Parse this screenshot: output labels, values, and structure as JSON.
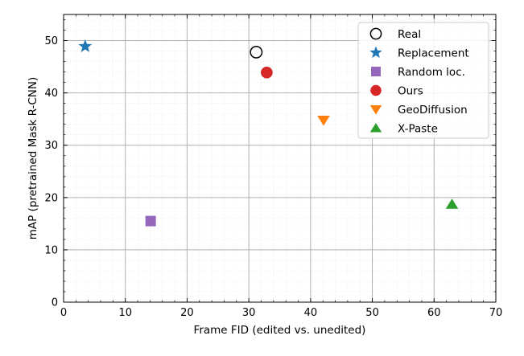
{
  "chart_data": {
    "type": "scatter",
    "title": "",
    "xlabel": "Frame FID (edited vs. unedited)",
    "ylabel": "mAP (pretrained Mask R-CNN)",
    "xlim": [
      0,
      70
    ],
    "ylim": [
      0,
      55
    ],
    "xticks": [
      "0",
      "10",
      "20",
      "30",
      "40",
      "50",
      "60",
      "70"
    ],
    "yticks": [
      "0",
      "10",
      "20",
      "30",
      "40",
      "50"
    ],
    "grid": true,
    "minor_grid": true,
    "legend_position": "top-right",
    "series": [
      {
        "name": "Real",
        "marker": "circle-open",
        "color": "#000000",
        "x": 31.2,
        "y": 47.8
      },
      {
        "name": "Replacement",
        "marker": "star",
        "color": "#1f77b4",
        "x": 3.5,
        "y": 48.9
      },
      {
        "name": "Random loc.",
        "marker": "square",
        "color": "#9467bd",
        "x": 14.1,
        "y": 15.5
      },
      {
        "name": "Ours",
        "marker": "circle",
        "color": "#d62728",
        "x": 32.9,
        "y": 43.9
      },
      {
        "name": "GeoDiffusion",
        "marker": "triangle-down",
        "color": "#ff7f0e",
        "x": 42.1,
        "y": 34.8
      },
      {
        "name": "X-Paste",
        "marker": "triangle-up",
        "color": "#2ca02c",
        "x": 62.9,
        "y": 18.7
      }
    ]
  }
}
